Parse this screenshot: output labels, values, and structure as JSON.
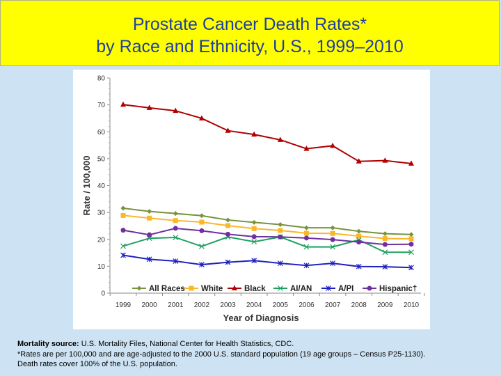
{
  "title": {
    "line1": "Prostate Cancer Death Rates*",
    "line2": "by Race and Ethnicity, U.S., 1999–2010"
  },
  "chart_data": {
    "type": "line",
    "xlabel": "Year of Diagnosis",
    "ylabel": "Rate / 100,000",
    "ylim": [
      0,
      80
    ],
    "yticks": [
      0,
      10,
      20,
      30,
      40,
      50,
      60,
      70,
      80
    ],
    "x": [
      "1999",
      "2000",
      "2001",
      "2002",
      "2003",
      "2004",
      "2005",
      "2006",
      "2007",
      "2008",
      "2009",
      "2010"
    ],
    "legend_position": "bottom-inside",
    "grid": false,
    "series": [
      {
        "name": "All Races",
        "color": "#77933c",
        "marker": "diamond",
        "values": [
          31.6,
          30.4,
          29.6,
          28.8,
          27.2,
          26.3,
          25.5,
          24.3,
          24.3,
          23.0,
          22.1,
          21.8
        ]
      },
      {
        "name": "White",
        "color": "#f9b82a",
        "marker": "square",
        "values": [
          28.9,
          27.9,
          27.0,
          26.4,
          25.1,
          24.0,
          23.3,
          22.3,
          22.2,
          21.2,
          20.3,
          20.2
        ]
      },
      {
        "name": "Black",
        "color": "#b00000",
        "marker": "triangle",
        "values": [
          70.1,
          68.9,
          67.8,
          65.0,
          60.4,
          59.0,
          57.0,
          53.7,
          54.8,
          49.0,
          49.3,
          48.2
        ]
      },
      {
        "name": "AI/AN",
        "color": "#1fa060",
        "marker": "x",
        "values": [
          17.5,
          20.4,
          20.7,
          17.4,
          20.9,
          19.1,
          20.9,
          17.2,
          17.2,
          19.8,
          15.2,
          15.2
        ]
      },
      {
        "name": "A/PI",
        "color": "#2020c0",
        "marker": "star",
        "values": [
          14.1,
          12.6,
          11.9,
          10.6,
          11.5,
          12.1,
          11.1,
          10.3,
          11.1,
          9.9,
          9.8,
          9.5
        ]
      },
      {
        "name": "Hispanic†",
        "color": "#7030a0",
        "marker": "circle",
        "values": [
          23.4,
          21.7,
          24.1,
          23.2,
          21.9,
          21.0,
          20.9,
          20.5,
          19.9,
          19.0,
          18.1,
          18.2
        ]
      }
    ]
  },
  "footnote": {
    "source_label": "Mortality source:",
    "source_text": " U.S. Mortality Files, National Center for Health Statistics, CDC.",
    "line2": "*Rates are per 100,000 and are age-adjusted to the 2000 U.S. standard population (19 age groups – Census P25-1130).",
    "line3": "Death rates cover 100% of the U.S. population."
  }
}
